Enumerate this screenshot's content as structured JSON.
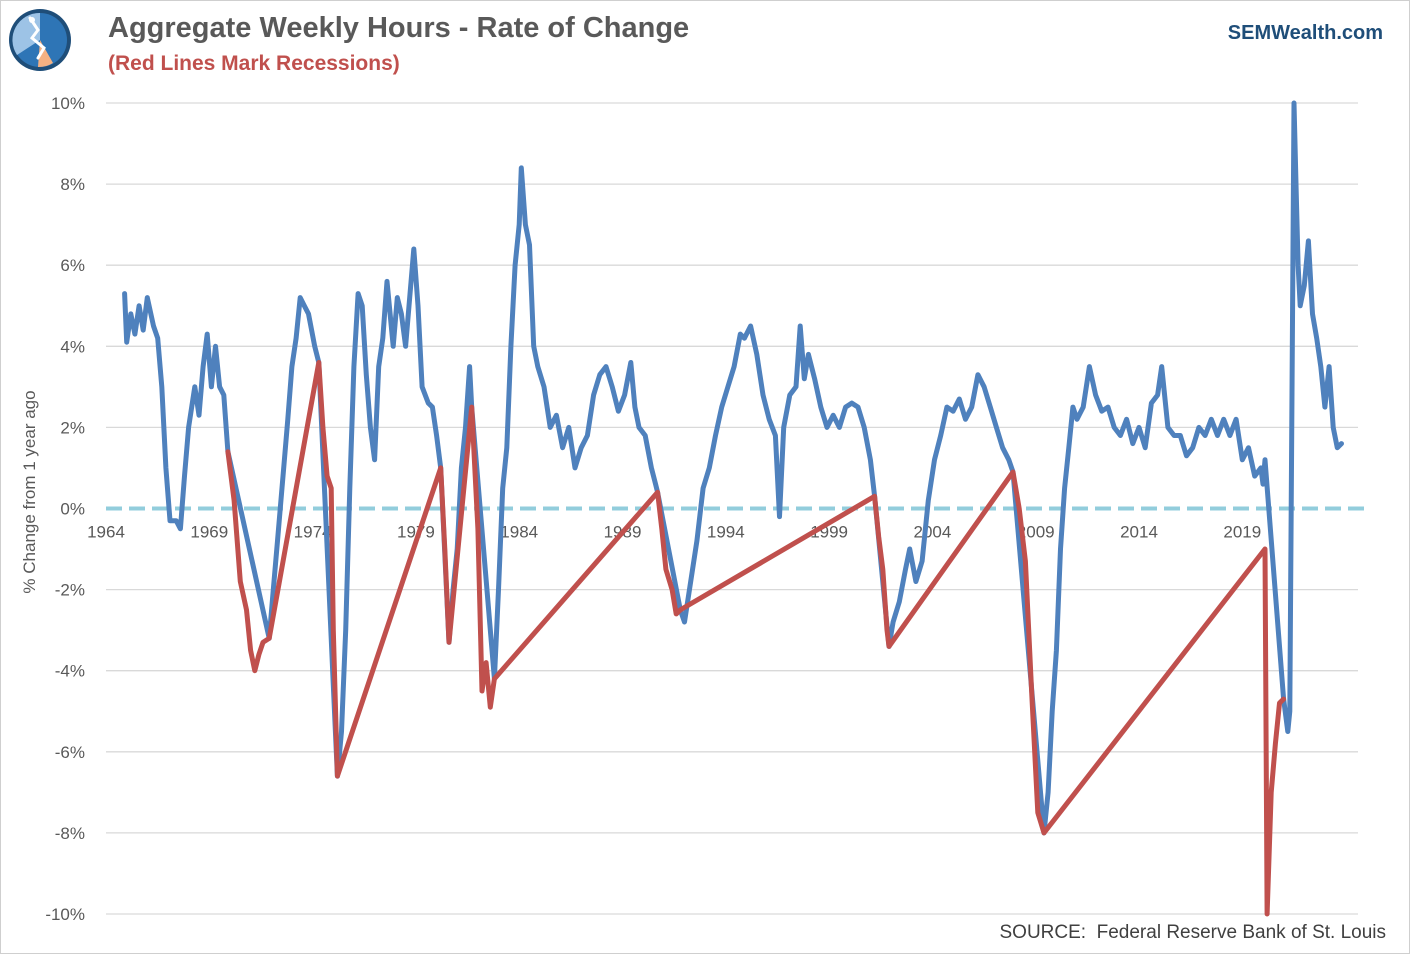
{
  "header": {
    "title": "Aggregate Weekly Hours - Rate of Change",
    "subtitle": "(Red Lines Mark Recessions)",
    "brand": "SEMWealth.com"
  },
  "footer": {
    "source": "SOURCE:  Federal Reserve Bank of St. Louis"
  },
  "colors": {
    "series": "#4f81bd",
    "recession": "#c0504d",
    "zero_line": "#92cddc",
    "grid": "#d9d9d9",
    "text": "#595959"
  },
  "chart_data": {
    "type": "line",
    "title": "Aggregate Weekly Hours - Rate of Change",
    "subtitle": "(Red Lines Mark Recessions)",
    "ylabel": "% Change from 1 year ago",
    "xlabel": "",
    "xlim": [
      1964,
      2024.6
    ],
    "ylim": [
      -10,
      10
    ],
    "xticks": [
      1964,
      1969,
      1974,
      1979,
      1984,
      1989,
      1994,
      1999,
      2004,
      2009,
      2014,
      2019
    ],
    "xtick_labels": [
      "1964",
      "1969",
      "1974",
      "1979",
      "1984",
      "1989",
      "1994",
      "1999",
      "2004",
      "2009",
      "2014",
      "2019"
    ],
    "yticks": [
      10,
      8,
      6,
      4,
      2,
      0,
      -2,
      -4,
      -6,
      -8,
      -10
    ],
    "ytick_labels": [
      "10%",
      "8%",
      "6%",
      "4%",
      "2%",
      "0%",
      "-2%",
      "-4%",
      "-6%",
      "-8%",
      "-10%"
    ],
    "grid": true,
    "reference_line": {
      "y": 0,
      "style": "dashed"
    },
    "series": [
      {
        "role": "expansion",
        "points": [
          [
            1964.9,
            5.3
          ],
          [
            1965.0,
            4.1
          ],
          [
            1965.2,
            4.8
          ],
          [
            1965.4,
            4.3
          ],
          [
            1965.6,
            5.0
          ],
          [
            1965.8,
            4.4
          ],
          [
            1966.0,
            5.2
          ],
          [
            1966.3,
            4.5
          ],
          [
            1966.5,
            4.2
          ],
          [
            1966.7,
            3.0
          ],
          [
            1966.9,
            1.0
          ],
          [
            1967.1,
            -0.3
          ],
          [
            1967.4,
            -0.3
          ],
          [
            1967.6,
            -0.5
          ],
          [
            1967.8,
            0.8
          ],
          [
            1968.0,
            2.0
          ],
          [
            1968.3,
            3.0
          ],
          [
            1968.5,
            2.3
          ],
          [
            1968.7,
            3.5
          ],
          [
            1968.9,
            4.3
          ],
          [
            1969.1,
            3.0
          ],
          [
            1969.3,
            4.0
          ],
          [
            1969.5,
            3.0
          ],
          [
            1969.7,
            2.8
          ],
          [
            1969.9,
            1.4
          ],
          [
            1971.9,
            -3.2
          ],
          [
            1972.1,
            -2.0
          ],
          [
            1972.3,
            -0.8
          ],
          [
            1972.6,
            1.0
          ],
          [
            1972.8,
            2.2
          ],
          [
            1973.0,
            3.5
          ],
          [
            1973.2,
            4.2
          ],
          [
            1973.4,
            5.2
          ],
          [
            1973.6,
            5.0
          ],
          [
            1973.8,
            4.8
          ],
          [
            1974.1,
            4.0
          ],
          [
            1974.3,
            3.6
          ],
          [
            1975.2,
            -6.6
          ],
          [
            1975.4,
            -5.5
          ],
          [
            1975.6,
            -3.0
          ],
          [
            1975.8,
            0.5
          ],
          [
            1976.0,
            3.5
          ],
          [
            1976.2,
            5.3
          ],
          [
            1976.4,
            5.0
          ],
          [
            1976.6,
            3.3
          ],
          [
            1976.8,
            2.0
          ],
          [
            1977.0,
            1.2
          ],
          [
            1977.2,
            3.5
          ],
          [
            1977.4,
            4.2
          ],
          [
            1977.6,
            5.6
          ],
          [
            1977.9,
            4.0
          ],
          [
            1978.1,
            5.2
          ],
          [
            1978.3,
            4.8
          ],
          [
            1978.5,
            4.0
          ],
          [
            1978.7,
            5.2
          ],
          [
            1978.9,
            6.4
          ],
          [
            1979.1,
            5.0
          ],
          [
            1979.3,
            3.0
          ],
          [
            1979.6,
            2.6
          ],
          [
            1979.8,
            2.5
          ],
          [
            1980.0,
            1.8
          ],
          [
            1980.2,
            1.0
          ],
          [
            1980.6,
            -3.3
          ],
          [
            1980.8,
            -2.0
          ],
          [
            1981.0,
            -1.0
          ],
          [
            1981.2,
            1.0
          ],
          [
            1981.4,
            2.0
          ],
          [
            1981.6,
            3.5
          ],
          [
            1981.7,
            2.5
          ],
          [
            1982.8,
            -4.2
          ],
          [
            1983.0,
            -2.0
          ],
          [
            1983.2,
            0.5
          ],
          [
            1983.4,
            1.5
          ],
          [
            1983.6,
            4.0
          ],
          [
            1983.8,
            6.0
          ],
          [
            1984.0,
            7.0
          ],
          [
            1984.1,
            8.4
          ],
          [
            1984.3,
            7.0
          ],
          [
            1984.5,
            6.5
          ],
          [
            1984.7,
            4.0
          ],
          [
            1984.9,
            3.5
          ],
          [
            1985.2,
            3.0
          ],
          [
            1985.5,
            2.0
          ],
          [
            1985.8,
            2.3
          ],
          [
            1986.1,
            1.5
          ],
          [
            1986.4,
            2.0
          ],
          [
            1986.7,
            1.0
          ],
          [
            1987.0,
            1.5
          ],
          [
            1987.3,
            1.8
          ],
          [
            1987.6,
            2.8
          ],
          [
            1987.9,
            3.3
          ],
          [
            1988.2,
            3.5
          ],
          [
            1988.5,
            3.0
          ],
          [
            1988.8,
            2.4
          ],
          [
            1989.1,
            2.8
          ],
          [
            1989.4,
            3.6
          ],
          [
            1989.6,
            2.5
          ],
          [
            1989.8,
            2.0
          ],
          [
            1990.1,
            1.8
          ],
          [
            1990.4,
            1.0
          ],
          [
            1990.6,
            0.6
          ],
          [
            1990.7,
            0.4
          ],
          [
            1991.8,
            -2.5
          ],
          [
            1992.0,
            -2.8
          ],
          [
            1992.3,
            -1.8
          ],
          [
            1992.6,
            -0.8
          ],
          [
            1992.9,
            0.5
          ],
          [
            1993.2,
            1.0
          ],
          [
            1993.5,
            1.8
          ],
          [
            1993.8,
            2.5
          ],
          [
            1994.1,
            3.0
          ],
          [
            1994.4,
            3.5
          ],
          [
            1994.7,
            4.3
          ],
          [
            1994.9,
            4.2
          ],
          [
            1995.2,
            4.5
          ],
          [
            1995.5,
            3.8
          ],
          [
            1995.8,
            2.8
          ],
          [
            1996.1,
            2.2
          ],
          [
            1996.4,
            1.8
          ],
          [
            1996.6,
            -0.2
          ],
          [
            1996.8,
            2.0
          ],
          [
            1997.1,
            2.8
          ],
          [
            1997.4,
            3.0
          ],
          [
            1997.6,
            4.5
          ],
          [
            1997.8,
            3.2
          ],
          [
            1998.0,
            3.8
          ],
          [
            1998.3,
            3.2
          ],
          [
            1998.6,
            2.5
          ],
          [
            1998.9,
            2.0
          ],
          [
            1999.2,
            2.3
          ],
          [
            1999.5,
            2.0
          ],
          [
            1999.8,
            2.5
          ],
          [
            2000.1,
            2.6
          ],
          [
            2000.4,
            2.5
          ],
          [
            2000.7,
            2.0
          ],
          [
            2001.0,
            1.2
          ],
          [
            2001.2,
            0.3
          ],
          [
            2001.9,
            -3.4
          ],
          [
            2002.1,
            -2.8
          ],
          [
            2002.4,
            -2.3
          ],
          [
            2002.7,
            -1.5
          ],
          [
            2002.9,
            -1.0
          ],
          [
            2003.2,
            -1.8
          ],
          [
            2003.5,
            -1.3
          ],
          [
            2003.8,
            0.2
          ],
          [
            2004.1,
            1.2
          ],
          [
            2004.4,
            1.8
          ],
          [
            2004.7,
            2.5
          ],
          [
            2005.0,
            2.4
          ],
          [
            2005.3,
            2.7
          ],
          [
            2005.6,
            2.2
          ],
          [
            2005.9,
            2.5
          ],
          [
            2006.2,
            3.3
          ],
          [
            2006.5,
            3.0
          ],
          [
            2006.8,
            2.5
          ],
          [
            2007.1,
            2.0
          ],
          [
            2007.4,
            1.5
          ],
          [
            2007.7,
            1.2
          ],
          [
            2007.9,
            0.9
          ],
          [
            2009.4,
            -8.0
          ],
          [
            2009.6,
            -7.0
          ],
          [
            2009.8,
            -5.0
          ],
          [
            2010.0,
            -3.5
          ],
          [
            2010.2,
            -1.0
          ],
          [
            2010.4,
            0.5
          ],
          [
            2010.6,
            1.5
          ],
          [
            2010.8,
            2.5
          ],
          [
            2011.0,
            2.2
          ],
          [
            2011.3,
            2.5
          ],
          [
            2011.6,
            3.5
          ],
          [
            2011.9,
            2.8
          ],
          [
            2012.2,
            2.4
          ],
          [
            2012.5,
            2.5
          ],
          [
            2012.8,
            2.0
          ],
          [
            2013.1,
            1.8
          ],
          [
            2013.4,
            2.2
          ],
          [
            2013.7,
            1.6
          ],
          [
            2014.0,
            2.0
          ],
          [
            2014.3,
            1.5
          ],
          [
            2014.6,
            2.6
          ],
          [
            2014.9,
            2.8
          ],
          [
            2015.1,
            3.5
          ],
          [
            2015.4,
            2.0
          ],
          [
            2015.7,
            1.8
          ],
          [
            2016.0,
            1.8
          ],
          [
            2016.3,
            1.3
          ],
          [
            2016.6,
            1.5
          ],
          [
            2016.9,
            2.0
          ],
          [
            2017.2,
            1.8
          ],
          [
            2017.5,
            2.2
          ],
          [
            2017.8,
            1.8
          ],
          [
            2018.1,
            2.2
          ],
          [
            2018.4,
            1.8
          ],
          [
            2018.7,
            2.2
          ],
          [
            2019.0,
            1.2
          ],
          [
            2019.3,
            1.5
          ],
          [
            2019.6,
            0.8
          ],
          [
            2019.9,
            1.0
          ],
          [
            2020.0,
            0.6
          ],
          [
            2020.1,
            1.2
          ],
          [
            2021.0,
            -4.7
          ],
          [
            2021.2,
            -5.5
          ],
          [
            2021.3,
            -5.0
          ],
          [
            2021.5,
            10.0
          ],
          [
            2021.6,
            8.0
          ],
          [
            2021.7,
            6.0
          ],
          [
            2021.8,
            5.0
          ],
          [
            2022.0,
            5.5
          ],
          [
            2022.2,
            6.6
          ],
          [
            2022.4,
            4.8
          ],
          [
            2022.6,
            4.2
          ],
          [
            2022.8,
            3.5
          ],
          [
            2023.0,
            2.5
          ],
          [
            2023.2,
            3.5
          ],
          [
            2023.4,
            2.0
          ],
          [
            2023.6,
            1.5
          ],
          [
            2023.8,
            1.6
          ]
        ]
      },
      {
        "role": "recession",
        "points": [
          [
            1969.9,
            1.4
          ],
          [
            1970.2,
            0.2
          ],
          [
            1970.5,
            -1.8
          ],
          [
            1970.8,
            -2.5
          ],
          [
            1971.0,
            -3.5
          ],
          [
            1971.2,
            -4.0
          ],
          [
            1971.4,
            -3.6
          ],
          [
            1971.6,
            -3.3
          ],
          [
            1971.9,
            -3.2
          ],
          [
            1974.3,
            3.6
          ],
          [
            1974.5,
            2.0
          ],
          [
            1974.7,
            0.8
          ],
          [
            1974.9,
            0.5
          ],
          [
            1975.0,
            -3.0
          ],
          [
            1975.2,
            -6.6
          ],
          [
            1980.2,
            1.0
          ],
          [
            1980.4,
            -1.0
          ],
          [
            1980.6,
            -3.3
          ],
          [
            1981.7,
            2.5
          ],
          [
            1982.0,
            -0.5
          ],
          [
            1982.2,
            -4.5
          ],
          [
            1982.4,
            -3.8
          ],
          [
            1982.6,
            -4.9
          ],
          [
            1982.8,
            -4.2
          ],
          [
            1990.7,
            0.4
          ],
          [
            1990.9,
            -0.5
          ],
          [
            1991.1,
            -1.5
          ],
          [
            1991.4,
            -2.0
          ],
          [
            1991.6,
            -2.6
          ],
          [
            1991.8,
            -2.5
          ],
          [
            2001.2,
            0.3
          ],
          [
            2001.4,
            -0.7
          ],
          [
            2001.6,
            -1.5
          ],
          [
            2001.8,
            -3.0
          ],
          [
            2001.9,
            -3.4
          ],
          [
            2007.9,
            0.9
          ],
          [
            2008.2,
            0.0
          ],
          [
            2008.5,
            -1.3
          ],
          [
            2008.8,
            -4.5
          ],
          [
            2009.1,
            -7.5
          ],
          [
            2009.4,
            -8.0
          ],
          [
            2020.1,
            -1.0
          ],
          [
            2020.2,
            -10.0
          ],
          [
            2020.4,
            -7.0
          ],
          [
            2020.6,
            -5.8
          ],
          [
            2020.8,
            -4.8
          ],
          [
            2021.0,
            -4.7
          ]
        ]
      }
    ]
  }
}
